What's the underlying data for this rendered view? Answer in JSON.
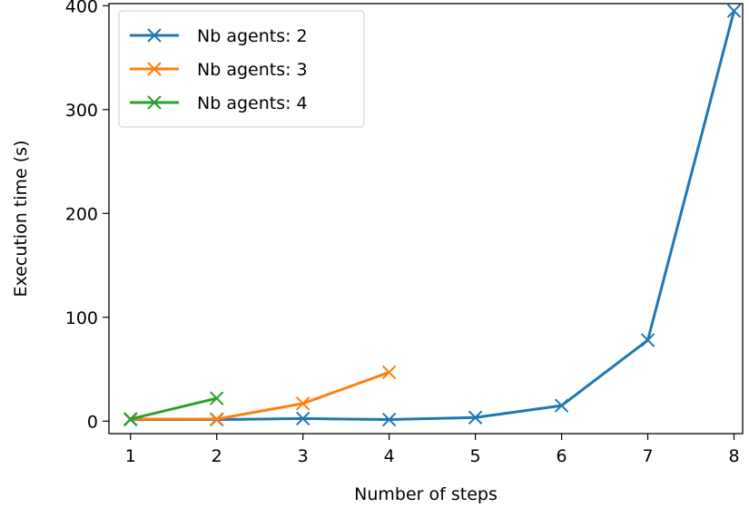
{
  "chart_data": {
    "type": "line",
    "title": "",
    "xlabel": "Number of steps",
    "ylabel": "Execution time (s)",
    "xlim": [
      0.75,
      8.1
    ],
    "ylim": [
      -12,
      402
    ],
    "xticks": [
      1,
      2,
      3,
      4,
      5,
      6,
      7,
      8
    ],
    "yticks": [
      0,
      100,
      200,
      300,
      400
    ],
    "grid": false,
    "legend_position": "top-left",
    "marker": "x",
    "series": [
      {
        "name": "Nb agents: 2",
        "color": "#1f77b4",
        "x": [
          1,
          2,
          3,
          4,
          5,
          6,
          7,
          8
        ],
        "y": [
          1.5,
          1.5,
          2.5,
          1.5,
          3.5,
          15,
          78,
          395
        ]
      },
      {
        "name": "Nb agents: 3",
        "color": "#ff7f0e",
        "x": [
          1,
          2,
          3,
          4
        ],
        "y": [
          2,
          2,
          17,
          47
        ]
      },
      {
        "name": "Nb agents: 4",
        "color": "#2ca02c",
        "x": [
          1,
          2
        ],
        "y": [
          2,
          22
        ]
      }
    ]
  }
}
